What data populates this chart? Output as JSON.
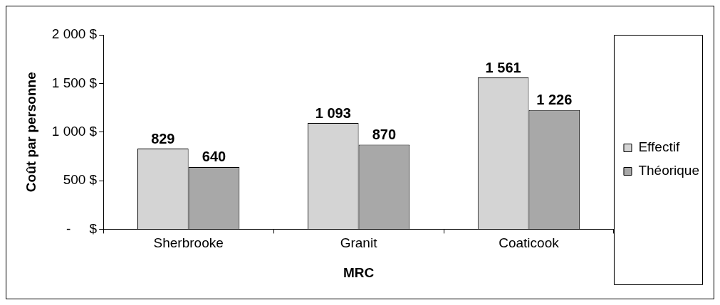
{
  "chart_data": {
    "type": "bar",
    "xlabel": "MRC",
    "ylabel": "Coût par personne",
    "categories": [
      "Sherbrooke",
      "Granit",
      "Coaticook"
    ],
    "series": [
      {
        "name": "Effectif",
        "color": "#d4d4d4",
        "values": [
          829,
          1093,
          1561
        ],
        "value_labels": [
          "829",
          "1 093",
          "1 561"
        ]
      },
      {
        "name": "Théorique",
        "color": "#a8a8a8",
        "values": [
          640,
          870,
          1226
        ],
        "value_labels": [
          "640",
          "870",
          "1 226"
        ]
      }
    ],
    "ylim": [
      0,
      2000
    ],
    "yticks": [
      {
        "value": 0,
        "label": "-     $"
      },
      {
        "value": 500,
        "label": "500 $"
      },
      {
        "value": 1000,
        "label": "1 000 $"
      },
      {
        "value": 1500,
        "label": "1 500 $"
      },
      {
        "value": 2000,
        "label": "2 000 $"
      }
    ],
    "grid": false,
    "legend": "right"
  }
}
